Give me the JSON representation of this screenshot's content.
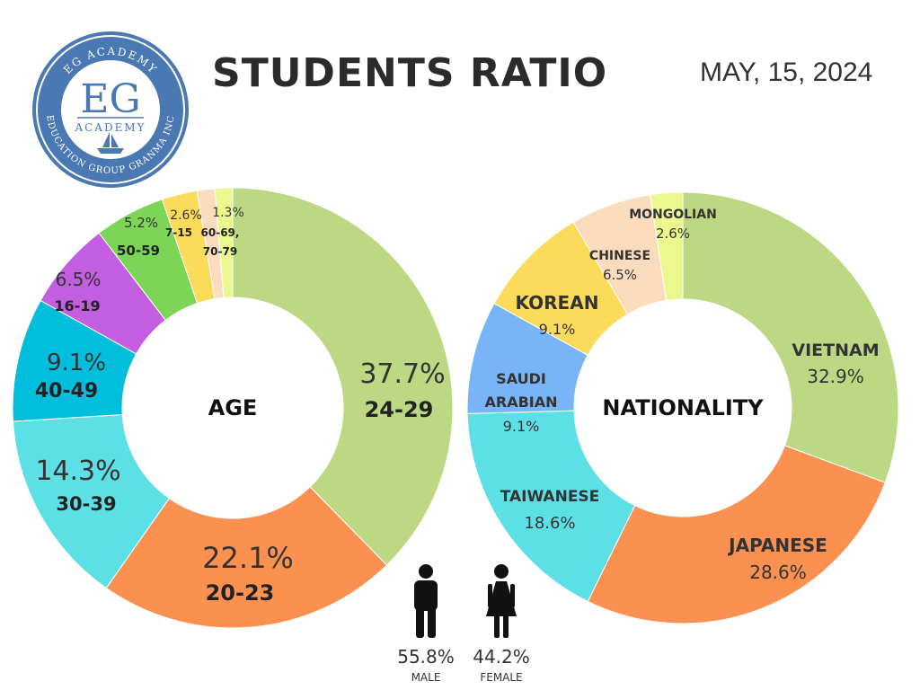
{
  "header": {
    "title": "STUDENTS RATIO",
    "date": "MAY, 15, 2024"
  },
  "logo": {
    "ring_top": "EG ACADEMY",
    "ring_bottom": "EDUCATION GROUP GRANMA INC",
    "letters": "EG",
    "word": "ACADEMY"
  },
  "chart_data": [
    {
      "type": "pie",
      "donut": true,
      "center_label": "AGE",
      "unit": "%",
      "slices": [
        {
          "label": "24-29",
          "value": 37.7,
          "value_text": "37.7%",
          "color": "#bdd882"
        },
        {
          "label": "20-23",
          "value": 22.1,
          "value_text": "22.1%",
          "color": "#fb9150"
        },
        {
          "label": "30-39",
          "value": 14.3,
          "value_text": "14.3%",
          "color": "#5de0e5"
        },
        {
          "label": "40-49",
          "value": 9.1,
          "value_text": "9.1%",
          "color": "#00bedc"
        },
        {
          "label": "16-19",
          "value": 6.5,
          "value_text": "6.5%",
          "color": "#c35ee1"
        },
        {
          "label": "50-59",
          "value": 5.2,
          "value_text": "5.2%",
          "color": "#7dd557"
        },
        {
          "label": "7-15",
          "value": 2.6,
          "value_text": "2.6%",
          "color": "#fcda5a"
        },
        {
          "label": "60-69, 70-79",
          "value": 1.3,
          "value_text": "1.3%",
          "color": "#fbdcbd"
        },
        {
          "label": "",
          "value": 1.3,
          "value_text": "",
          "color": "#eaf88d"
        }
      ]
    },
    {
      "type": "pie",
      "donut": true,
      "center_label": "NATIONALITY",
      "unit": "%",
      "slices": [
        {
          "label": "VIETNAM",
          "value": 32.9,
          "value_text": "32.9%",
          "color": "#bdd882"
        },
        {
          "label": "JAPANESE",
          "value": 28.6,
          "value_text": "28.6%",
          "color": "#fb9150"
        },
        {
          "label": "TAIWANESE",
          "value": 18.6,
          "value_text": "18.6%",
          "color": "#5de0e5"
        },
        {
          "label": "SAUDI ARABIAN",
          "value": 9.1,
          "value_text": "9.1%",
          "color": "#7ab4f8"
        },
        {
          "label": "KOREAN",
          "value": 9.1,
          "value_text": "9.1%",
          "color": "#fcda5a"
        },
        {
          "label": "CHINESE",
          "value": 6.5,
          "value_text": "6.5%",
          "color": "#fbdcbd"
        },
        {
          "label": "MONGOLIAN",
          "value": 2.6,
          "value_text": "2.6%",
          "color": "#eaf88d"
        }
      ]
    }
  ],
  "gender": [
    {
      "label": "MALE",
      "value": 55.8,
      "value_text": "55.8%",
      "icon": "male-icon"
    },
    {
      "label": "FEMALE",
      "value": 44.2,
      "value_text": "44.2%",
      "icon": "female-icon"
    }
  ]
}
